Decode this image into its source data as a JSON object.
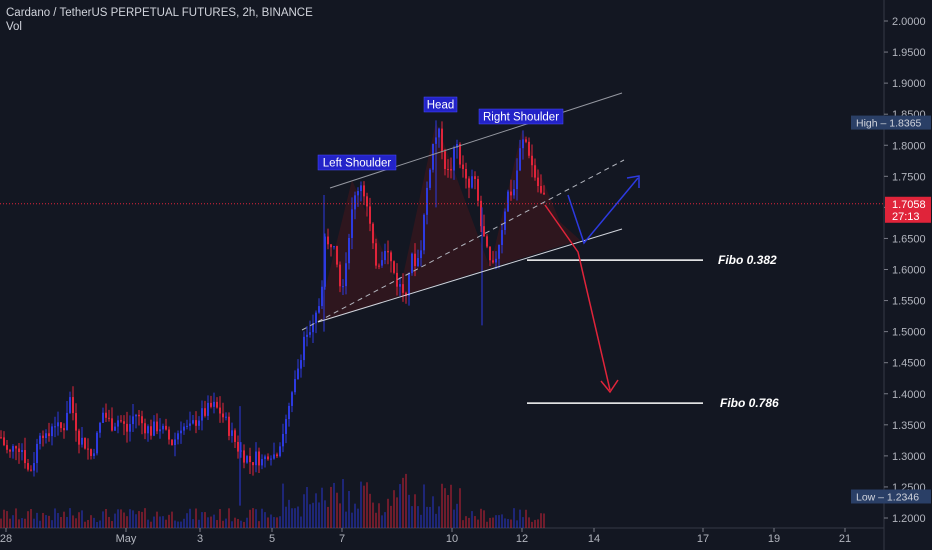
{
  "header": {
    "title": "Cardano / TetherUS PERPETUAL FUTURES, 2h, BINANCE",
    "volume_label": "Vol"
  },
  "chart_data": {
    "type": "candlestick",
    "symbol": "Cardano / TetherUS PERPETUAL FUTURES",
    "interval": "2h",
    "exchange": "BINANCE",
    "y_ticks": [
      "2.0000",
      "1.9500",
      "1.9000",
      "1.8500",
      "1.8000",
      "1.7500",
      "1.7000",
      "1.6500",
      "1.6000",
      "1.5500",
      "1.5000",
      "1.4500",
      "1.4000",
      "1.3500",
      "1.3000",
      "1.2500",
      "1.2000"
    ],
    "ylim": [
      1.19,
      2.03
    ],
    "x_ticks": [
      "28",
      "May",
      "3",
      "5",
      "7",
      "10",
      "12",
      "14",
      "17",
      "19",
      "21"
    ],
    "current_price": {
      "value": "1.7058",
      "countdown": "27:13",
      "price": 1.7058
    },
    "high": {
      "label": "High",
      "value": "1.8365",
      "price": 1.8365
    },
    "low": {
      "label": "Low",
      "value": "1.2346",
      "price": 1.2346
    },
    "annotations": {
      "left_shoulder": "Left Shoulder",
      "head": "Head",
      "right_shoulder": "Right Shoulder",
      "fibo_382": "Fibo 0.382",
      "fibo_786": "Fibo 0.786"
    },
    "fibo_levels": {
      "fibo_382": 1.615,
      "fibo_786": 1.385
    },
    "price_path": [
      [
        0,
        1.33
      ],
      [
        8,
        1.3
      ],
      [
        15,
        1.32
      ],
      [
        22,
        1.31
      ],
      [
        28,
        1.27
      ],
      [
        34,
        1.3
      ],
      [
        40,
        1.35
      ],
      [
        46,
        1.32
      ],
      [
        52,
        1.36
      ],
      [
        58,
        1.34
      ],
      [
        64,
        1.35
      ],
      [
        68,
        1.4
      ],
      [
        72,
        1.37
      ],
      [
        78,
        1.33
      ],
      [
        84,
        1.32
      ],
      [
        90,
        1.3
      ],
      [
        96,
        1.33
      ],
      [
        102,
        1.37
      ],
      [
        110,
        1.35
      ],
      [
        118,
        1.36
      ],
      [
        126,
        1.34
      ],
      [
        134,
        1.37
      ],
      [
        142,
        1.35
      ],
      [
        150,
        1.34
      ],
      [
        158,
        1.35
      ],
      [
        166,
        1.33
      ],
      [
        172,
        1.32
      ],
      [
        180,
        1.35
      ],
      [
        188,
        1.34
      ],
      [
        196,
        1.36
      ],
      [
        204,
        1.37
      ],
      [
        212,
        1.38
      ],
      [
        220,
        1.37
      ],
      [
        226,
        1.35
      ],
      [
        232,
        1.33
      ],
      [
        238,
        1.31
      ],
      [
        244,
        1.3
      ],
      [
        250,
        1.29
      ],
      [
        256,
        1.3
      ],
      [
        262,
        1.29
      ],
      [
        268,
        1.31
      ],
      [
        274,
        1.3
      ],
      [
        280,
        1.33
      ],
      [
        286,
        1.36
      ],
      [
        292,
        1.4
      ],
      [
        298,
        1.45
      ],
      [
        304,
        1.5
      ],
      [
        310,
        1.49
      ],
      [
        316,
        1.53
      ],
      [
        320,
        1.56
      ],
      [
        324,
        1.65
      ],
      [
        328,
        1.63
      ],
      [
        332,
        1.66
      ],
      [
        336,
        1.62
      ],
      [
        340,
        1.57
      ],
      [
        344,
        1.6
      ],
      [
        348,
        1.66
      ],
      [
        352,
        1.7
      ],
      [
        356,
        1.73
      ],
      [
        360,
        1.74
      ],
      [
        364,
        1.72
      ],
      [
        368,
        1.68
      ],
      [
        372,
        1.63
      ],
      [
        376,
        1.61
      ],
      [
        380,
        1.62
      ],
      [
        384,
        1.64
      ],
      [
        388,
        1.62
      ],
      [
        392,
        1.6
      ],
      [
        396,
        1.58
      ],
      [
        400,
        1.57
      ],
      [
        404,
        1.56
      ],
      [
        408,
        1.6
      ],
      [
        412,
        1.62
      ],
      [
        416,
        1.61
      ],
      [
        420,
        1.64
      ],
      [
        424,
        1.7
      ],
      [
        428,
        1.76
      ],
      [
        432,
        1.8
      ],
      [
        436,
        1.82
      ],
      [
        440,
        1.81
      ],
      [
        444,
        1.77
      ],
      [
        448,
        1.75
      ],
      [
        452,
        1.78
      ],
      [
        456,
        1.8
      ],
      [
        460,
        1.77
      ],
      [
        464,
        1.74
      ],
      [
        468,
        1.73
      ],
      [
        472,
        1.75
      ],
      [
        476,
        1.72
      ],
      [
        480,
        1.67
      ],
      [
        484,
        1.64
      ],
      [
        488,
        1.61
      ],
      [
        492,
        1.6
      ],
      [
        496,
        1.63
      ],
      [
        500,
        1.66
      ],
      [
        504,
        1.7
      ],
      [
        508,
        1.73
      ],
      [
        512,
        1.72
      ],
      [
        516,
        1.76
      ],
      [
        520,
        1.8
      ],
      [
        524,
        1.81
      ],
      [
        528,
        1.79
      ],
      [
        532,
        1.76
      ],
      [
        536,
        1.74
      ],
      [
        540,
        1.72
      ],
      [
        544,
        1.71
      ]
    ]
  }
}
